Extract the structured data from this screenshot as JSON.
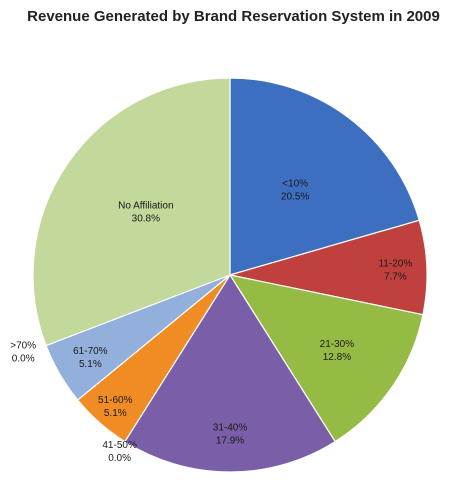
{
  "chart_data": {
    "type": "pie",
    "title": "Revenue Generated by Brand Reservation System in 2009",
    "slices": [
      {
        "category": "<10%",
        "value_text": "20.5%",
        "value": 20.5,
        "color": "#3d6fc0"
      },
      {
        "category": "11-20%",
        "value_text": "7.7%",
        "value": 7.7,
        "color": "#c0403d"
      },
      {
        "category": "21-30%",
        "value_text": "12.8%",
        "value": 12.8,
        "color": "#96bb44"
      },
      {
        "category": "31-40%",
        "value_text": "17.9%",
        "value": 17.9,
        "color": "#7a5ea8"
      },
      {
        "category": "41-50%",
        "value_text": "0.0%",
        "value": 0.0,
        "color": "#3e9ec8"
      },
      {
        "category": "51-60%",
        "value_text": "5.1%",
        "value": 5.1,
        "color": "#f08c24"
      },
      {
        "category": "61-70%",
        "value_text": "5.1%",
        "value": 5.1,
        "color": "#93afdb"
      },
      {
        "category": ">70%",
        "value_text": "0.0%",
        "value": 0.0,
        "color": "#dd8f8c"
      },
      {
        "category": "No Affiliation",
        "value_text": "30.8%",
        "value": 30.8,
        "color": "#c3d89b"
      }
    ],
    "start_angle_deg": 0,
    "direction": "clockwise",
    "legend": "none"
  }
}
